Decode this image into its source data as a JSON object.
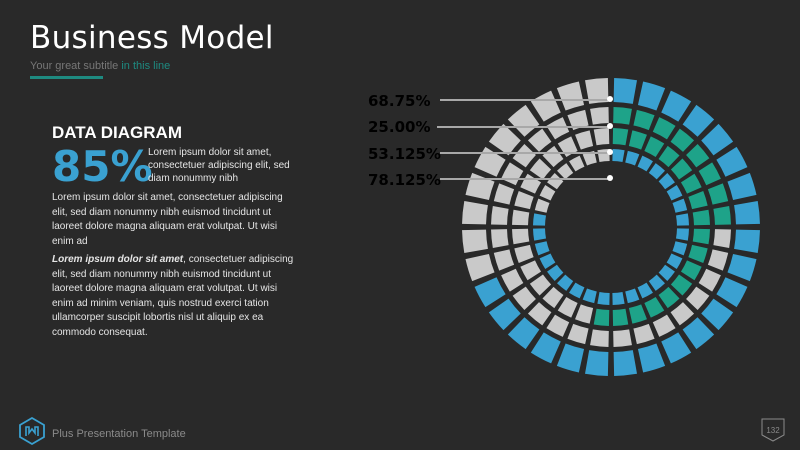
{
  "slide": {
    "title": "Business Model",
    "subtitle_plain": "Your great subtitle",
    "subtitle_highlight": "in this line",
    "page_number": "132"
  },
  "content": {
    "heading": "DATA DIAGRAM",
    "big_percent": "85%",
    "percent_text": "Lorem ipsum dolor sit amet, consectetuer adipiscing elit, sed diam nonummy nibh",
    "paragraph1": "Lorem ipsum dolor sit amet, consectetuer adipiscing elit, sed diam nonummy nibh euismod tincidunt ut laoreet dolore magna aliquam erat volutpat. Ut wisi enim ad",
    "paragraph2_emphasis": "Lorem ipsum dolor sit amet",
    "paragraph2_rest": ", consectetuer adipiscing elit, sed diam nonummy nibh euismod tincidunt ut laoreet dolore magna aliquam erat volutpat. Ut wisi enim ad minim veniam, quis nostrud exerci tation ullamcorper suscipit lobortis nisl ut aliquip ex ea commodo consequat."
  },
  "legend": [
    {
      "label": "68.75%",
      "color": "#3aa1d1"
    },
    {
      "label": "25.00%",
      "color": "#1ea389"
    },
    {
      "label": "53.125%",
      "color": "#1ea389"
    },
    {
      "label": "78.125%",
      "color": "#3aa1d1"
    }
  ],
  "footer": {
    "template_name": "Plus Presentation Template"
  },
  "colors": {
    "background": "#292929",
    "accent_teal": "#1e8a80",
    "blue": "#3aa1d1",
    "green": "#1ea389",
    "segment_gray": "#c9c9c9"
  },
  "chart_data": {
    "type": "radial-bar",
    "rings": [
      {
        "value": 68.75,
        "color": "#3aa1d1"
      },
      {
        "value": 25.0,
        "color": "#1ea389"
      },
      {
        "value": 53.125,
        "color": "#1ea389"
      },
      {
        "value": 78.125,
        "color": "#3aa1d1"
      }
    ],
    "segments_per_ring": 32
  }
}
